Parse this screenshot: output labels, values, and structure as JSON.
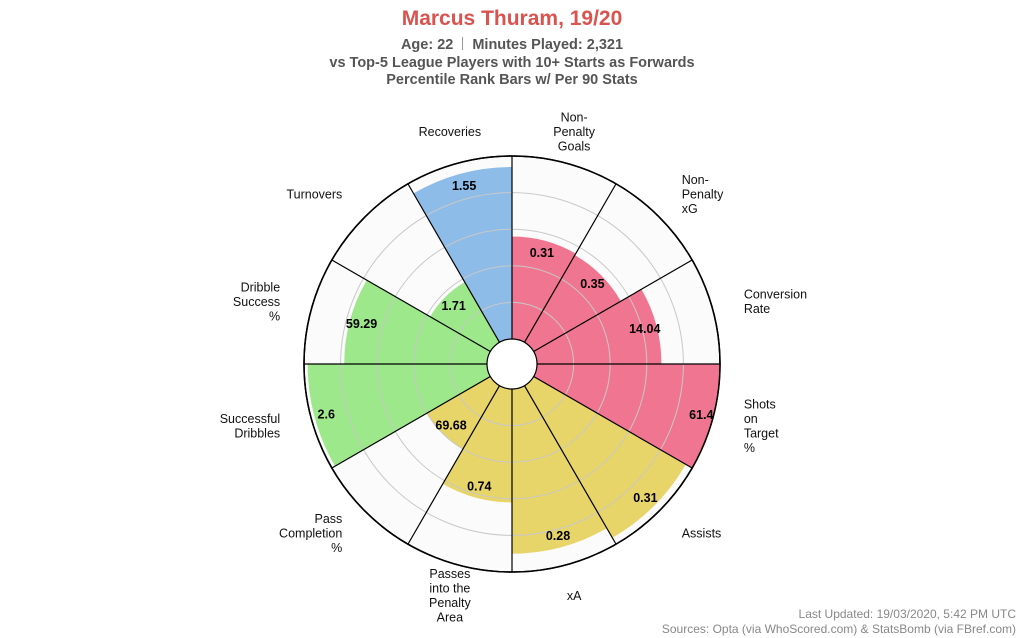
{
  "header": {
    "title": "Marcus Thuram, 19/20",
    "age_label": "Age: 22",
    "minutes_label": "Minutes Played: 2,321",
    "comparison": "vs Top-5 League Players with 10+ Starts as Forwards",
    "method": "Percentile Rank Bars w/ Per 90 Stats"
  },
  "footer": {
    "updated": "Last Updated: 19/03/2020, 5:42 PM UTC",
    "sources": "Sources: Opta (via WhoScored.com) & StatsBomb (via FBref.com)"
  },
  "colors": {
    "attacking": "#f07591",
    "creativity": "#e8d56a",
    "possession": "#9ce88a",
    "defending": "#8ebce8",
    "title": "#d9534f"
  },
  "chart_data": {
    "type": "polar_bar",
    "value_unit": "percentile",
    "rlim": [
      0,
      100
    ],
    "grid": true,
    "categories": [
      {
        "label": "Non-\nPenalty\nGoals",
        "stat": "0.31",
        "percentile": 56,
        "group": "attacking"
      },
      {
        "label": "Non-\nPenalty\nxG",
        "stat": "0.35",
        "percentile": 55,
        "group": "attacking"
      },
      {
        "label": "Conversion\nRate",
        "stat": "14.04",
        "percentile": 68,
        "group": "attacking"
      },
      {
        "label": "Shots\non\nTarget\n%",
        "stat": "61.4",
        "percentile": 100,
        "group": "attacking"
      },
      {
        "label": "Assists",
        "stat": "0.31",
        "percentile": 96,
        "group": "creativity"
      },
      {
        "label": "xA",
        "stat": "0.28",
        "percentile": 90,
        "group": "creativity"
      },
      {
        "label": "Passes\ninto the\nPenalty\nArea",
        "stat": "0.74",
        "percentile": 62,
        "group": "creativity"
      },
      {
        "label": "Pass\nCompletion\n%",
        "stat": "69.68",
        "percentile": 40,
        "group": "creativity"
      },
      {
        "label": "Successful\nDribbles",
        "stat": "2.6",
        "percentile": 98,
        "group": "possession"
      },
      {
        "label": "Dribble\nSuccess\n%",
        "stat": "59.29",
        "percentile": 78,
        "group": "possession"
      },
      {
        "label": "Turnovers",
        "stat": "1.71",
        "percentile": 38,
        "group": "possession"
      },
      {
        "label": "Recoveries",
        "stat": "1.55",
        "percentile": 94,
        "group": "defending"
      }
    ]
  }
}
